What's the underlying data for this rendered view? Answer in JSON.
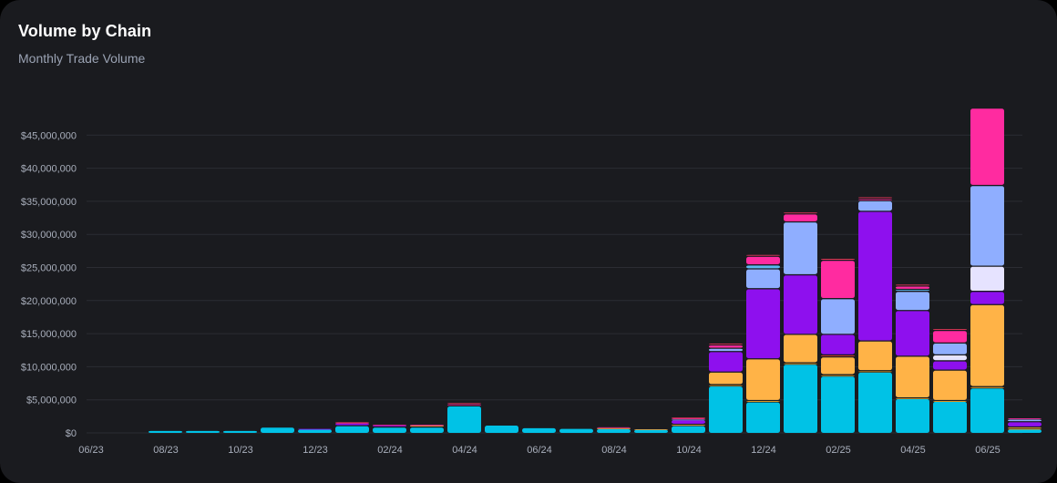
{
  "title": "Volume by Chain",
  "subtitle": "Monthly Trade Volume",
  "chart_data": {
    "type": "bar",
    "stacked": true,
    "title": "Volume by Chain",
    "subtitle": "Monthly Trade Volume",
    "xlabel": "",
    "ylabel": "",
    "ylim": [
      0,
      48000000
    ],
    "grid": true,
    "legend": "none",
    "y_ticks": [
      0,
      5000000,
      10000000,
      15000000,
      20000000,
      25000000,
      30000000,
      35000000,
      40000000,
      45000000
    ],
    "y_tick_labels": [
      "$0",
      "$5,000,000",
      "$10,000,000",
      "$15,000,000",
      "$20,000,000",
      "$25,000,000",
      "$30,000,000",
      "$35,000,000",
      "$40,000,000",
      "$45,000,000"
    ],
    "categories": [
      "06/23",
      "07/23",
      "08/23",
      "09/23",
      "10/23",
      "11/23",
      "12/23",
      "01/24",
      "02/24",
      "03/24",
      "04/24",
      "05/24",
      "06/24",
      "07/24",
      "08/24",
      "09/24",
      "10/24",
      "11/24",
      "12/24",
      "01/25",
      "02/25",
      "03/25",
      "04/25",
      "05/25",
      "06/25"
    ],
    "x_tick_labels": [
      "06/23",
      "",
      "08/23",
      "",
      "10/23",
      "",
      "12/23",
      "",
      "02/24",
      "",
      "04/24",
      "",
      "06/24",
      "",
      "08/24",
      "",
      "10/24",
      "",
      "12/24",
      "",
      "02/25",
      "",
      "04/25",
      "",
      "06/25"
    ],
    "series": [
      {
        "color": "#00c2e6",
        "values": [
          0,
          300000,
          300000,
          300000,
          800000,
          500000,
          1000000,
          800000,
          800000,
          4000000,
          1100000,
          700000,
          600000,
          550000,
          450000,
          1000000,
          7000000,
          4600000,
          10300000,
          8500000,
          9100000,
          5100000,
          4700000,
          6700000,
          500000
        ]
      },
      {
        "color": "#f5a524",
        "values": [
          0,
          0,
          0,
          0,
          0,
          0,
          0,
          0,
          0,
          0,
          0,
          0,
          0,
          0,
          0,
          0,
          200000,
          200000,
          200000,
          200000,
          200000,
          100000,
          100000,
          200000,
          100000
        ]
      },
      {
        "color": "#ffb347",
        "values": [
          0,
          0,
          0,
          0,
          0,
          0,
          0,
          0,
          300000,
          0,
          0,
          0,
          0,
          150000,
          100000,
          200000,
          1900000,
          6300000,
          4300000,
          2700000,
          4500000,
          6300000,
          4600000,
          12400000,
          200000
        ]
      },
      {
        "color": "#e23b3b",
        "values": [
          0,
          0,
          0,
          0,
          0,
          0,
          0,
          0,
          0,
          0,
          0,
          0,
          0,
          0,
          0,
          0,
          0,
          0,
          0,
          300000,
          0,
          0,
          0,
          0,
          0
        ]
      },
      {
        "color": "#8e10ee",
        "values": [
          0,
          0,
          0,
          0,
          0,
          100000,
          400000,
          300000,
          0,
          0,
          0,
          0,
          0,
          0,
          0,
          700000,
          3100000,
          10600000,
          9000000,
          3100000,
          19600000,
          6900000,
          1400000,
          2000000,
          800000
        ]
      },
      {
        "color": "#e6e3ff",
        "values": [
          0,
          0,
          0,
          0,
          0,
          0,
          0,
          0,
          0,
          0,
          0,
          0,
          0,
          0,
          0,
          0,
          0,
          0,
          0,
          0,
          0,
          0,
          900000,
          3800000,
          0
        ]
      },
      {
        "color": "#8faeff",
        "values": [
          0,
          0,
          0,
          0,
          0,
          0,
          0,
          0,
          0,
          0,
          0,
          0,
          0,
          0,
          0,
          100000,
          500000,
          3000000,
          8000000,
          5400000,
          1600000,
          2900000,
          1800000,
          12200000,
          400000
        ]
      },
      {
        "color": "#5db8f0",
        "values": [
          0,
          0,
          0,
          0,
          0,
          0,
          0,
          0,
          0,
          0,
          0,
          0,
          0,
          0,
          0,
          0,
          0,
          600000,
          0,
          0,
          0,
          300000,
          0,
          0,
          0
        ]
      },
      {
        "color": "#ff2ba0",
        "values": [
          0,
          0,
          0,
          0,
          0,
          0,
          100000,
          100000,
          100000,
          300000,
          0,
          0,
          0,
          150000,
          0,
          200000,
          500000,
          1300000,
          1200000,
          5800000,
          300000,
          500000,
          1900000,
          11700000,
          200000
        ]
      },
      {
        "color": "#e8365a",
        "values": [
          0,
          0,
          0,
          0,
          0,
          0,
          100000,
          0,
          0,
          200000,
          0,
          0,
          0,
          0,
          0,
          100000,
          300000,
          300000,
          300000,
          300000,
          300000,
          300000,
          300000,
          0,
          0
        ]
      }
    ]
  }
}
